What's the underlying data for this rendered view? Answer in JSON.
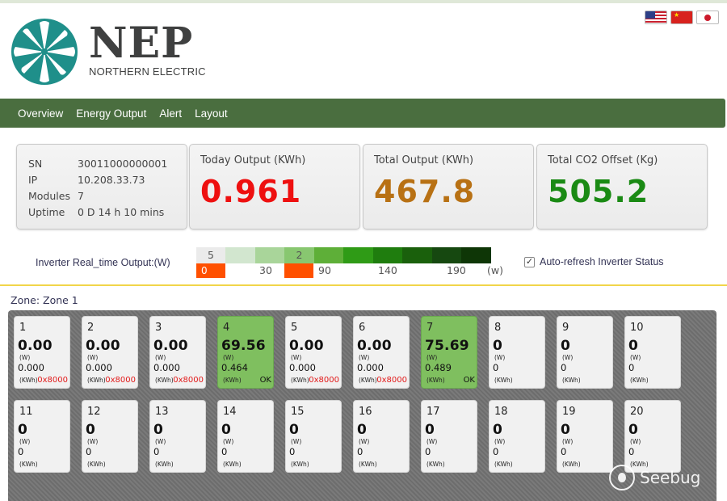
{
  "brand": {
    "name": "NEP",
    "subtitle": "NORTHERN ELECTRIC"
  },
  "languages": [
    "en-US",
    "zh-CN",
    "ja-JP"
  ],
  "nav": {
    "items": [
      "Overview",
      "Energy Output",
      "Alert",
      "Layout"
    ]
  },
  "info": {
    "rows": [
      {
        "key": "SN",
        "value": "30011000000001"
      },
      {
        "key": "IP",
        "value": "10.208.33.73"
      },
      {
        "key": "Modules",
        "value": "7"
      },
      {
        "key": "Uptime",
        "value": "0 D 14 h 10 mins"
      }
    ]
  },
  "stats": [
    {
      "title": "Today Output (KWh)",
      "value": "0.961",
      "color": "#ee1010"
    },
    {
      "title": "Total Output (KWh)",
      "value": "467.8",
      "color": "#b87114"
    },
    {
      "title": "Total CO2 Offset (Kg)",
      "value": "505.2",
      "color": "#1a8a14"
    }
  ],
  "legend": {
    "label": "Inverter Real_time Output:(W)",
    "top_labels": [
      "5",
      "",
      "",
      "2",
      "",
      "",
      "",
      "",
      "",
      ""
    ],
    "colors": [
      "#ebebeb",
      "#d2e6cf",
      "#a9d59a",
      "#88c770",
      "#5eaf38",
      "#2f9b16",
      "#1f7d0e",
      "#1a600c",
      "#164810",
      "#0e3606"
    ],
    "scale": [
      "30",
      "90",
      "140",
      "190",
      "(w)"
    ],
    "boxes": [
      "0",
      ""
    ]
  },
  "auto_refresh": {
    "label": "Auto-refresh Inverter Status",
    "checked": true
  },
  "zone": {
    "label": "Zone: Zone 1"
  },
  "units": {
    "power": "(W)",
    "energy": "(KWh)"
  },
  "tiles": [
    {
      "id": "1",
      "power": "0.00",
      "energy": "0.000",
      "status": "0x8000",
      "ok": false
    },
    {
      "id": "2",
      "power": "0.00",
      "energy": "0.000",
      "status": "0x8000",
      "ok": false
    },
    {
      "id": "3",
      "power": "0.00",
      "energy": "0.000",
      "status": "0x8000",
      "ok": false
    },
    {
      "id": "4",
      "power": "69.56",
      "energy": "0.464",
      "status": "OK",
      "ok": true
    },
    {
      "id": "5",
      "power": "0.00",
      "energy": "0.000",
      "status": "0x8000",
      "ok": false
    },
    {
      "id": "6",
      "power": "0.00",
      "energy": "0.000",
      "status": "0x8000",
      "ok": false
    },
    {
      "id": "7",
      "power": "75.69",
      "energy": "0.489",
      "status": "OK",
      "ok": true
    },
    {
      "id": "8",
      "power": "0",
      "energy": "0",
      "status": "",
      "ok": false
    },
    {
      "id": "9",
      "power": "0",
      "energy": "0",
      "status": "",
      "ok": false
    },
    {
      "id": "10",
      "power": "0",
      "energy": "0",
      "status": "",
      "ok": false
    },
    {
      "id": "11",
      "power": "0",
      "energy": "0",
      "status": "",
      "ok": false
    },
    {
      "id": "12",
      "power": "0",
      "energy": "0",
      "status": "",
      "ok": false
    },
    {
      "id": "13",
      "power": "0",
      "energy": "0",
      "status": "",
      "ok": false
    },
    {
      "id": "14",
      "power": "0",
      "energy": "0",
      "status": "",
      "ok": false
    },
    {
      "id": "15",
      "power": "0",
      "energy": "0",
      "status": "",
      "ok": false
    },
    {
      "id": "16",
      "power": "0",
      "energy": "0",
      "status": "",
      "ok": false
    },
    {
      "id": "17",
      "power": "0",
      "energy": "0",
      "status": "",
      "ok": false
    },
    {
      "id": "18",
      "power": "0",
      "energy": "0",
      "status": "",
      "ok": false
    },
    {
      "id": "19",
      "power": "0",
      "energy": "0",
      "status": "",
      "ok": false
    },
    {
      "id": "20",
      "power": "0",
      "energy": "0",
      "status": "",
      "ok": false
    }
  ],
  "watermark": "Seebug"
}
